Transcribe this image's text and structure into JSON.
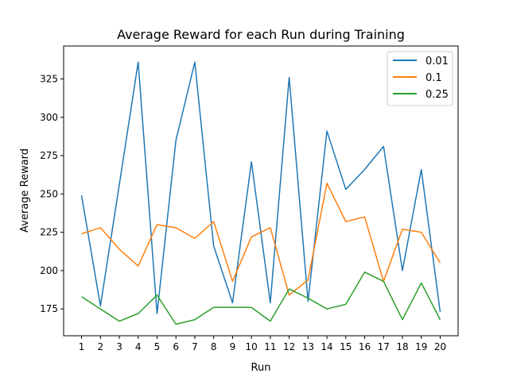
{
  "chart_data": {
    "type": "line",
    "title": "Average Reward for each Run during Training",
    "xlabel": "Run",
    "ylabel": "Average Reward",
    "x": [
      1,
      2,
      3,
      4,
      5,
      6,
      7,
      8,
      9,
      10,
      11,
      12,
      13,
      14,
      15,
      16,
      17,
      18,
      19,
      20
    ],
    "xlim": [
      0.05,
      20.95
    ],
    "ylim": [
      157.5,
      346.5
    ],
    "yticks": [
      175,
      200,
      225,
      250,
      275,
      300,
      325
    ],
    "grid": false,
    "legend_position": "top-right",
    "series": [
      {
        "name": "0.01",
        "color": "#1f77b4",
        "values": [
          249,
          177,
          256,
          336,
          172,
          285,
          336,
          216,
          179,
          271,
          179,
          326,
          180,
          291,
          253,
          266,
          281,
          200,
          266,
          173
        ]
      },
      {
        "name": "0.1",
        "color": "#ff7f0e",
        "values": [
          224,
          228,
          214,
          203,
          230,
          228,
          221,
          232,
          193,
          222,
          228,
          184,
          194,
          257,
          232,
          235,
          193,
          227,
          225,
          205
        ]
      },
      {
        "name": "0.25",
        "color": "#2ca02c",
        "values": [
          183,
          175,
          167,
          172,
          184,
          165,
          168,
          176,
          176,
          176,
          167,
          188,
          182,
          175,
          178,
          199,
          193,
          168,
          192,
          168
        ]
      }
    ]
  }
}
